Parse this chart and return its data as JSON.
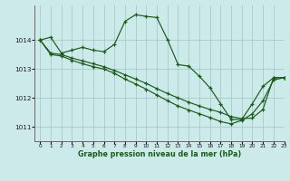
{
  "title": "Graphe pression niveau de la mer (hPa)",
  "background_color": "#cceaea",
  "grid_color": "#aacaca",
  "line_color": "#1a5c1a",
  "xlim": [
    -0.5,
    23
  ],
  "ylim": [
    1010.5,
    1015.2
  ],
  "xticks": [
    0,
    1,
    2,
    3,
    4,
    5,
    6,
    7,
    8,
    9,
    10,
    11,
    12,
    13,
    14,
    15,
    16,
    17,
    18,
    19,
    20,
    21,
    22,
    23
  ],
  "yticks": [
    1011,
    1012,
    1013,
    1014
  ],
  "series1": {
    "x": [
      0,
      1,
      2,
      3,
      4,
      5,
      6,
      7,
      8,
      9,
      10,
      11,
      12,
      13,
      14,
      15,
      16,
      17,
      18,
      19,
      20,
      21,
      22,
      23
    ],
    "y": [
      1014.0,
      1014.1,
      1013.55,
      1013.65,
      1013.75,
      1013.65,
      1013.6,
      1013.85,
      1014.65,
      1014.88,
      1014.82,
      1014.78,
      1014.02,
      1013.15,
      1013.1,
      1012.75,
      1012.35,
      1011.8,
      1011.25,
      1011.25,
      1011.8,
      1012.4,
      1012.7,
      1012.7
    ]
  },
  "series2": {
    "x": [
      0,
      1,
      2,
      3,
      4,
      5,
      6,
      7,
      8,
      9,
      10,
      11,
      12,
      13,
      14,
      15,
      16,
      17,
      18,
      19,
      20,
      21,
      22,
      23
    ],
    "y": [
      1014.0,
      1013.55,
      1013.5,
      1013.38,
      1013.28,
      1013.18,
      1013.08,
      1012.95,
      1012.8,
      1012.65,
      1012.5,
      1012.32,
      1012.15,
      1012.0,
      1011.85,
      1011.72,
      1011.6,
      1011.5,
      1011.35,
      1011.28,
      1011.3,
      1011.6,
      1012.7,
      1012.7
    ]
  },
  "series3": {
    "x": [
      0,
      1,
      2,
      3,
      4,
      5,
      6,
      7,
      8,
      9,
      10,
      11,
      12,
      13,
      14,
      15,
      16,
      17,
      18,
      19,
      20,
      21,
      22,
      23
    ],
    "y": [
      1014.0,
      1013.5,
      1013.45,
      1013.3,
      1013.18,
      1013.08,
      1013.0,
      1012.85,
      1012.65,
      1012.48,
      1012.3,
      1012.1,
      1011.9,
      1011.72,
      1011.58,
      1011.45,
      1011.32,
      1011.18,
      1011.1,
      1011.22,
      1011.45,
      1011.9,
      1012.62,
      1012.7
    ]
  }
}
